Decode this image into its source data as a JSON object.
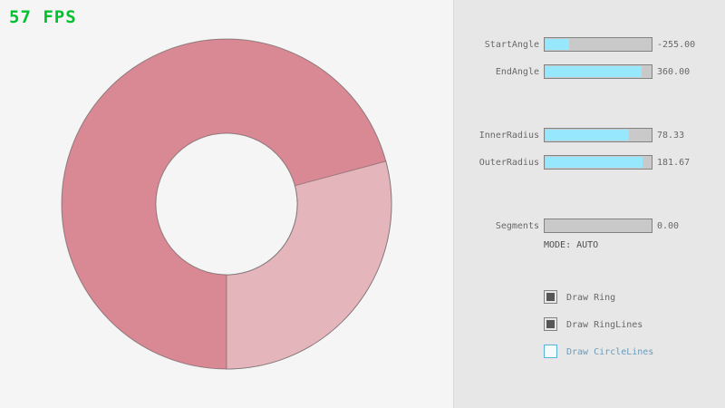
{
  "fps": "57 FPS",
  "colors": {
    "background": "#f5f5f5",
    "panel": "#e7e7e7",
    "fps_green": "#00c12f",
    "ring_dark": "#d98994",
    "ring_light": "#e5b5bc",
    "ring_outline": "#4a4a4a",
    "slider_fill": "#97e8ff",
    "slider_track": "#c9c9c9",
    "slider_border": "#838383",
    "text_gray": "#686868",
    "focused_border": "#5bb2d9",
    "focused_text": "#6c9bbc"
  },
  "sliders": [
    {
      "label": "StartAngle",
      "value": "-255.00",
      "fill_pct": 21.7
    },
    {
      "label": "EndAngle",
      "value": "360.00",
      "fill_pct": 90.0
    },
    {
      "label": "InnerRadius",
      "value": "78.33",
      "fill_pct": 78.3
    },
    {
      "label": "OuterRadius",
      "value": "181.67",
      "fill_pct": 90.8
    },
    {
      "label": "Segments",
      "value": "0.00",
      "fill_pct": 0
    }
  ],
  "mode_text": "MODE: AUTO",
  "checkboxes": [
    {
      "label": "Draw Ring",
      "checked": true,
      "focused": false
    },
    {
      "label": "Draw RingLines",
      "checked": true,
      "focused": false
    },
    {
      "label": "Draw CircleLines",
      "checked": false,
      "focused": true
    }
  ]
}
